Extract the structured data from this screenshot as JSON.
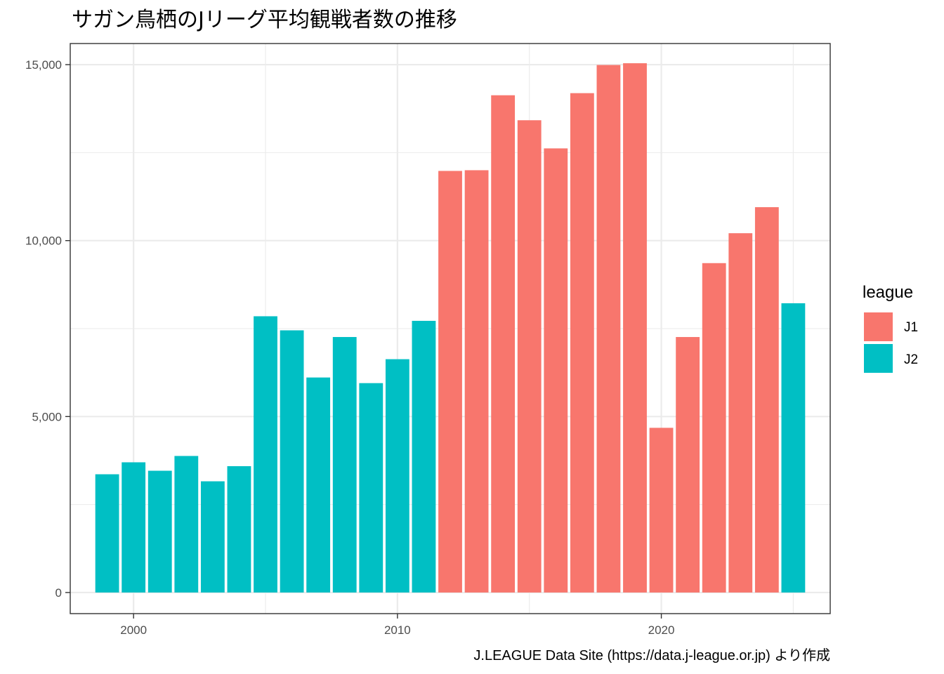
{
  "chart_data": {
    "type": "bar",
    "title": "サガン鳥栖のJリーグ平均観戦者数の推移",
    "caption": "J.LEAGUE Data Site (https://data.j-league.or.jp) より作成",
    "xlabel": "",
    "ylabel": "",
    "xlim": [
      1997.6,
      2026.4
    ],
    "ylim": [
      -600,
      15600
    ],
    "x_ticks": [
      2000,
      2010,
      2020
    ],
    "x_tick_labels": [
      "2000",
      "2010",
      "2020"
    ],
    "y_ticks": [
      0,
      5000,
      10000,
      15000
    ],
    "y_tick_labels": [
      "0",
      "5,000",
      "10,000",
      "15,000"
    ],
    "grid": true,
    "legend": {
      "title": "league",
      "placement": "right",
      "entries": [
        {
          "name": "J1",
          "color": "#F8766D"
        },
        {
          "name": "J2",
          "color": "#00BFC4"
        }
      ]
    },
    "bars": [
      {
        "x": 1999,
        "y": 3360,
        "league": "J2"
      },
      {
        "x": 2000,
        "y": 3700,
        "league": "J2"
      },
      {
        "x": 2001,
        "y": 3460,
        "league": "J2"
      },
      {
        "x": 2002,
        "y": 3880,
        "league": "J2"
      },
      {
        "x": 2003,
        "y": 3160,
        "league": "J2"
      },
      {
        "x": 2004,
        "y": 3590,
        "league": "J2"
      },
      {
        "x": 2005,
        "y": 7850,
        "league": "J2"
      },
      {
        "x": 2006,
        "y": 7450,
        "league": "J2"
      },
      {
        "x": 2007,
        "y": 6110,
        "league": "J2"
      },
      {
        "x": 2008,
        "y": 7260,
        "league": "J2"
      },
      {
        "x": 2009,
        "y": 5950,
        "league": "J2"
      },
      {
        "x": 2010,
        "y": 6630,
        "league": "J2"
      },
      {
        "x": 2011,
        "y": 7720,
        "league": "J2"
      },
      {
        "x": 2012,
        "y": 11980,
        "league": "J1"
      },
      {
        "x": 2013,
        "y": 12000,
        "league": "J1"
      },
      {
        "x": 2014,
        "y": 14130,
        "league": "J1"
      },
      {
        "x": 2015,
        "y": 13420,
        "league": "J1"
      },
      {
        "x": 2016,
        "y": 12620,
        "league": "J1"
      },
      {
        "x": 2017,
        "y": 14190,
        "league": "J1"
      },
      {
        "x": 2018,
        "y": 14990,
        "league": "J1"
      },
      {
        "x": 2019,
        "y": 15040,
        "league": "J1"
      },
      {
        "x": 2020,
        "y": 4680,
        "league": "J1"
      },
      {
        "x": 2021,
        "y": 7260,
        "league": "J1"
      },
      {
        "x": 2022,
        "y": 9360,
        "league": "J1"
      },
      {
        "x": 2023,
        "y": 10210,
        "league": "J1"
      },
      {
        "x": 2024,
        "y": 10950,
        "league": "J1"
      },
      {
        "x": 2025,
        "y": 8220,
        "league": "J2"
      }
    ]
  }
}
